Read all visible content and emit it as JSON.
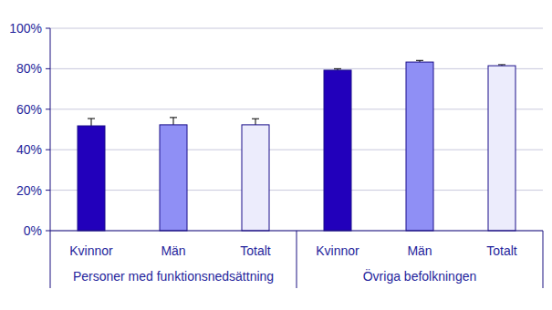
{
  "chart_data": {
    "type": "bar",
    "categories": [
      "Kvinnor",
      "Män",
      "Totalt",
      "Kvinnor",
      "Män",
      "Totalt"
    ],
    "groups": [
      "Personer med funktionsnedsättning",
      "Övriga befolkningen"
    ],
    "values": [
      51.8,
      52.3,
      52.3,
      79.3,
      83.3,
      81.5
    ],
    "errors": [
      3.6,
      3.6,
      3.0,
      0.7,
      0.8,
      0.5
    ],
    "colors": [
      "#2200bb",
      "#8f8ff5",
      "#ececfc",
      "#2200bb",
      "#8f8ff5",
      "#ececfc"
    ],
    "ylim": [
      0,
      100
    ],
    "yticks": [
      {
        "value": 0,
        "label": "0%"
      },
      {
        "value": 20,
        "label": "20%"
      },
      {
        "value": 40,
        "label": "40%"
      },
      {
        "value": 60,
        "label": "60%"
      },
      {
        "value": 80,
        "label": "80%"
      },
      {
        "value": 100,
        "label": "100%"
      }
    ],
    "grid": true
  }
}
